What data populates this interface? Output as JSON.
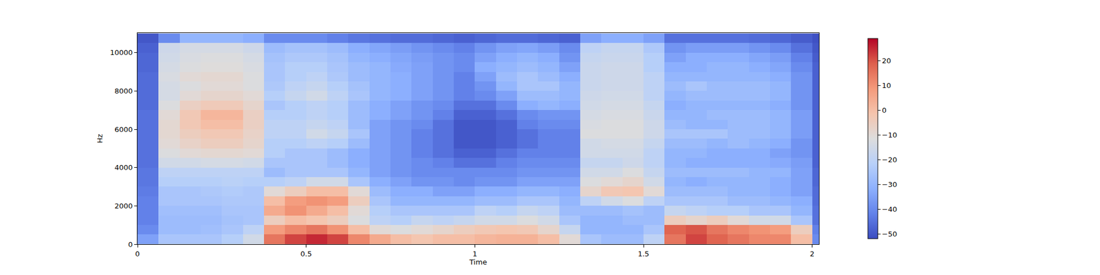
{
  "chart_data": {
    "type": "heatmap",
    "x_label": "Time",
    "y_label": "Hz",
    "x": [
      0.03125,
      0.09375,
      0.15625,
      0.21875,
      0.28125,
      0.34375,
      0.40625,
      0.46875,
      0.53125,
      0.59375,
      0.65625,
      0.71875,
      0.78125,
      0.84375,
      0.90625,
      0.96875,
      1.03125,
      1.09375,
      1.15625,
      1.21875,
      1.28125,
      1.34375,
      1.40625,
      1.46875,
      1.53125,
      1.59375,
      1.65625,
      1.71875,
      1.78125,
      1.84375,
      1.90625,
      1.96875,
      2.03125
    ],
    "y": [
      250,
      750,
      1250,
      1750,
      2250,
      2750,
      3250,
      3750,
      4250,
      4750,
      5250,
      5750,
      6250,
      6750,
      7250,
      7750,
      8250,
      8750,
      9250,
      9750,
      10250,
      10750
    ],
    "z": [
      [
        -35,
        -25,
        -25,
        -25,
        -22,
        -15,
        15,
        22,
        25,
        22,
        12,
        5,
        0,
        -2,
        0,
        0,
        2,
        3,
        3,
        0,
        -10,
        -25,
        -28,
        -28,
        -20,
        15,
        22,
        18,
        15,
        12,
        12,
        0,
        -40
      ],
      [
        -40,
        -28,
        -28,
        -27,
        -25,
        -20,
        8,
        12,
        15,
        10,
        0,
        -10,
        -12,
        -10,
        -8,
        -5,
        -3,
        -2,
        -3,
        -8,
        -18,
        -30,
        -30,
        -30,
        -25,
        18,
        20,
        15,
        12,
        10,
        8,
        -5,
        -42
      ],
      [
        -42,
        -28,
        -28,
        -28,
        -26,
        -25,
        -5,
        0,
        -2,
        -5,
        -12,
        -20,
        -22,
        -18,
        -20,
        -18,
        -15,
        -15,
        -12,
        -15,
        -25,
        -30,
        -30,
        -28,
        -28,
        -5,
        -8,
        -5,
        -10,
        -15,
        -15,
        -25,
        -45
      ],
      [
        -42,
        -27,
        -27,
        -27,
        -25,
        -25,
        5,
        10,
        5,
        0,
        -10,
        -22,
        -25,
        -25,
        -25,
        -25,
        -20,
        -22,
        -18,
        -20,
        -28,
        -28,
        -28,
        -26,
        -28,
        -18,
        -20,
        -22,
        -22,
        -25,
        -25,
        -30,
        -45
      ],
      [
        -42,
        -25,
        -25,
        -25,
        -24,
        -24,
        0,
        8,
        10,
        8,
        -5,
        -25,
        -30,
        -30,
        -30,
        -30,
        -28,
        -28,
        -25,
        -25,
        -30,
        -20,
        -15,
        -12,
        -20,
        -25,
        -25,
        -25,
        -28,
        -28,
        -30,
        -32,
        -46
      ],
      [
        -43,
        -25,
        -25,
        -24,
        -23,
        -24,
        -10,
        -5,
        0,
        0,
        -10,
        -28,
        -32,
        -32,
        -35,
        -35,
        -32,
        -32,
        -30,
        -30,
        -32,
        -8,
        -3,
        -2,
        -10,
        -28,
        -28,
        -28,
        -30,
        -30,
        -32,
        -35,
        -46
      ],
      [
        -44,
        -22,
        -22,
        -22,
        -21,
        -22,
        -22,
        -20,
        -15,
        -15,
        -25,
        -32,
        -35,
        -38,
        -38,
        -40,
        -38,
        -38,
        -35,
        -35,
        -35,
        -12,
        -10,
        -8,
        -15,
        -30,
        -32,
        -30,
        -30,
        -30,
        -32,
        -35,
        -47
      ],
      [
        -44,
        -20,
        -20,
        -20,
        -20,
        -20,
        -28,
        -25,
        -25,
        -25,
        -30,
        -35,
        -38,
        -40,
        -40,
        -40,
        -40,
        -40,
        -38,
        -38,
        -38,
        -15,
        -15,
        -12,
        -18,
        -28,
        -28,
        -28,
        -28,
        -30,
        -30,
        -35,
        -47
      ],
      [
        -45,
        -15,
        -15,
        -14,
        -14,
        -15,
        -25,
        -25,
        -25,
        -28,
        -32,
        -35,
        -38,
        -40,
        -42,
        -45,
        -45,
        -42,
        -40,
        -40,
        -40,
        -18,
        -18,
        -16,
        -20,
        -30,
        -32,
        -32,
        -32,
        -32,
        -33,
        -36,
        -48
      ],
      [
        -45,
        -12,
        -10,
        -9,
        -9,
        -10,
        -22,
        -25,
        -25,
        -28,
        -32,
        -35,
        -38,
        -42,
        -45,
        -48,
        -48,
        -45,
        -42,
        -42,
        -42,
        -15,
        -15,
        -15,
        -20,
        -30,
        -30,
        -32,
        -32,
        -32,
        -35,
        -38,
        -48
      ],
      [
        -45,
        -10,
        -7,
        -5,
        -5,
        -8,
        -22,
        -22,
        -20,
        -22,
        -28,
        -35,
        -38,
        -42,
        -45,
        -50,
        -50,
        -48,
        -45,
        -42,
        -42,
        -15,
        -14,
        -14,
        -18,
        -28,
        -28,
        -30,
        -28,
        -30,
        -32,
        -38,
        -48
      ],
      [
        -45,
        -9,
        -5,
        -3,
        -3,
        -7,
        -20,
        -20,
        -15,
        -18,
        -25,
        -35,
        -38,
        -42,
        -45,
        -50,
        -50,
        -48,
        -45,
        -42,
        -42,
        -12,
        -12,
        -12,
        -16,
        -25,
        -25,
        -25,
        -28,
        -28,
        -30,
        -36,
        -48
      ],
      [
        -45,
        -9,
        -3,
        0,
        0,
        -6,
        -20,
        -20,
        -18,
        -20,
        -28,
        -35,
        -38,
        -40,
        -45,
        -50,
        -50,
        -48,
        -42,
        -40,
        -40,
        -13,
        -12,
        -12,
        -16,
        -28,
        -30,
        -30,
        -28,
        -28,
        -30,
        -36,
        -48
      ],
      [
        -45,
        -10,
        -3,
        2,
        2,
        -6,
        -22,
        -22,
        -20,
        -22,
        -28,
        -32,
        -35,
        -38,
        -42,
        -48,
        -48,
        -45,
        -40,
        -38,
        -38,
        -14,
        -13,
        -13,
        -17,
        -30,
        -30,
        -28,
        -28,
        -28,
        -30,
        -36,
        -48
      ],
      [
        -46,
        -12,
        -6,
        -4,
        -4,
        -8,
        -25,
        -22,
        -20,
        -22,
        -28,
        -32,
        -35,
        -38,
        -40,
        -45,
        -45,
        -40,
        -32,
        -30,
        -32,
        -15,
        -14,
        -14,
        -18,
        -32,
        -30,
        -30,
        -30,
        -30,
        -32,
        -38,
        -48
      ],
      [
        -46,
        -14,
        -10,
        -8,
        -8,
        -10,
        -22,
        -18,
        -15,
        -20,
        -25,
        -30,
        -32,
        -35,
        -38,
        -42,
        -40,
        -35,
        -28,
        -28,
        -30,
        -16,
        -15,
        -15,
        -20,
        -30,
        -28,
        -28,
        -28,
        -28,
        -30,
        -38,
        -48
      ],
      [
        -46,
        -14,
        -12,
        -10,
        -10,
        -12,
        -24,
        -20,
        -18,
        -22,
        -26,
        -30,
        -32,
        -35,
        -38,
        -42,
        -38,
        -30,
        -25,
        -25,
        -30,
        -17,
        -16,
        -16,
        -20,
        -28,
        -25,
        -28,
        -28,
        -28,
        -30,
        -38,
        -48
      ],
      [
        -46,
        -13,
        -10,
        -9,
        -9,
        -12,
        -25,
        -22,
        -20,
        -24,
        -28,
        -30,
        -32,
        -35,
        -38,
        -42,
        -35,
        -28,
        -25,
        -28,
        -32,
        -17,
        -16,
        -16,
        -20,
        -30,
        -30,
        -30,
        -30,
        -30,
        -32,
        -38,
        -48
      ],
      [
        -47,
        -14,
        -12,
        -11,
        -11,
        -13,
        -25,
        -22,
        -22,
        -25,
        -28,
        -30,
        -33,
        -35,
        -38,
        -40,
        -32,
        -30,
        -28,
        -30,
        -35,
        -17,
        -16,
        -16,
        -22,
        -32,
        -32,
        -30,
        -30,
        -32,
        -34,
        -40,
        -48
      ],
      [
        -47,
        -15,
        -13,
        -12,
        -12,
        -14,
        -26,
        -24,
        -24,
        -26,
        -30,
        -32,
        -34,
        -36,
        -38,
        -40,
        -35,
        -32,
        -30,
        -32,
        -38,
        -18,
        -17,
        -17,
        -22,
        -35,
        -32,
        -32,
        -32,
        -34,
        -36,
        -42,
        -49
      ],
      [
        -48,
        -16,
        -14,
        -14,
        -14,
        -16,
        -28,
        -26,
        -26,
        -28,
        -32,
        -34,
        -36,
        -38,
        -40,
        -42,
        -38,
        -35,
        -34,
        -36,
        -40,
        -20,
        -18,
        -18,
        -24,
        -38,
        -36,
        -36,
        -36,
        -38,
        -40,
        -45,
        -50
      ],
      [
        -50,
        -40,
        -30,
        -30,
        -30,
        -32,
        -40,
        -40,
        -40,
        -42,
        -44,
        -45,
        -46,
        -46,
        -47,
        -48,
        -47,
        -46,
        -46,
        -47,
        -48,
        -35,
        -32,
        -32,
        -35,
        -45,
        -45,
        -45,
        -45,
        -46,
        -47,
        -49,
        -51
      ]
    ],
    "xlim": [
      0,
      2.02
    ],
    "ylim": [
      0,
      11025
    ],
    "xticks": [
      0,
      0.5,
      1,
      1.5,
      2
    ],
    "yticks": [
      0,
      2000,
      4000,
      6000,
      8000,
      10000
    ],
    "colorbar_range": [
      -52,
      29
    ],
    "colorbar_ticks": [
      {
        "value": -50,
        "label": "−50"
      },
      {
        "value": -40,
        "label": "−40"
      },
      {
        "value": -30,
        "label": "−30"
      },
      {
        "value": -20,
        "label": "−20"
      },
      {
        "value": -10,
        "label": "−10"
      },
      0,
      10,
      20
    ]
  }
}
